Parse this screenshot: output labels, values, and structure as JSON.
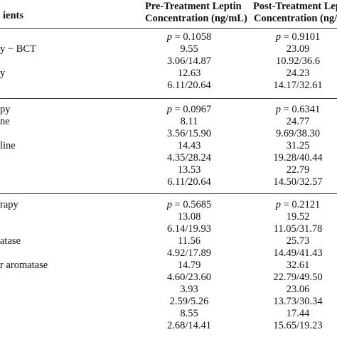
{
  "header": {
    "col1": "ients",
    "col2_line1": "Pre-Treatment Leptin",
    "col2_line2": "Concentration (ng/mL)",
    "col3_line1": "Post-Treatment Lep",
    "col3_line2": "Concentration (ng/mL"
  },
  "sections": [
    {
      "rows": [
        {
          "label": "",
          "pre": "= 0.1058",
          "post": "= 0.9101",
          "p": true
        },
        {
          "label": "y − BCT",
          "pre": "9.55",
          "post": "23.09"
        },
        {
          "label": "",
          "pre": "3.06/14.87",
          "post": "10.92/36.6"
        },
        {
          "label": "y",
          "pre": "12.63",
          "post": "24.23"
        },
        {
          "label": "",
          "pre": "6.11/20.64",
          "post": "14.17/32.61"
        }
      ]
    },
    {
      "rows": [
        {
          "label": "py",
          "pre": "= 0.0967",
          "post": "= 0.6341",
          "p": true
        },
        {
          "label": "ne",
          "pre": "8.11",
          "post": "24.77"
        },
        {
          "label": "",
          "pre": "3.56/15.90",
          "post": "9.69/38.30"
        },
        {
          "label": "line",
          "pre": "14.43",
          "post": "31.25"
        },
        {
          "label": "",
          "pre": "4.35/28.24",
          "post": "19.28/40.44"
        },
        {
          "label": "",
          "pre": "13.53",
          "post": "22.79"
        },
        {
          "label": "",
          "pre": "6.11/20.64",
          "post": "14.50/32.57"
        }
      ]
    },
    {
      "rows": [
        {
          "label": "rapy",
          "pre": "= 0.5685",
          "post": "= 0.2121",
          "p": true
        },
        {
          "label": "",
          "pre": "13.08",
          "post": "19.52"
        },
        {
          "label": "",
          "pre": "6.14/19.93",
          "post": "11.05/31.78"
        },
        {
          "label": "atase",
          "pre": "11.56",
          "post": "25.73"
        },
        {
          "label": "",
          "pre": "4.92/17.89",
          "post": "14.49/41.43"
        },
        {
          "label": "r aromatase",
          "pre": "14.79",
          "post": "32.61"
        },
        {
          "label": "",
          "pre": "4.60/23.60",
          "post": "22.79/49.50"
        },
        {
          "label": "",
          "pre": "3.93",
          "post": "23.06"
        },
        {
          "label": "",
          "pre": "2.59/5.26",
          "post": "13.73/30.34"
        },
        {
          "label": "",
          "pre": "8.55",
          "post": "17.44"
        },
        {
          "label": "",
          "pre": "2.68/14.41",
          "post": "15.65/19.23"
        }
      ]
    }
  ]
}
